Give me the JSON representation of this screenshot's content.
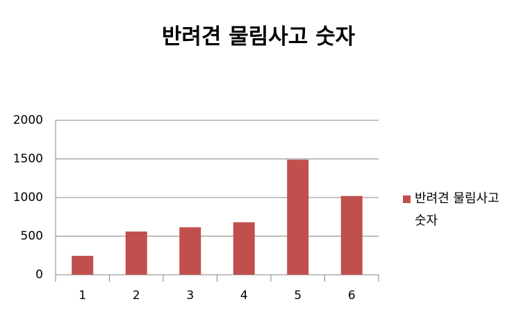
{
  "chart_data": {
    "type": "bar",
    "title": "반려견 물림사고 숫자",
    "categories": [
      "1",
      "2",
      "3",
      "4",
      "5",
      "6"
    ],
    "series": [
      {
        "name": "반려견 물림사고 숫자",
        "color": "#c0504d",
        "values": [
          245,
          560,
          615,
          680,
          1490,
          1020
        ]
      }
    ],
    "ylim": [
      0,
      2000
    ],
    "yticks": [
      0,
      500,
      1000,
      1500,
      2000
    ],
    "grid": true,
    "legend": "right"
  }
}
